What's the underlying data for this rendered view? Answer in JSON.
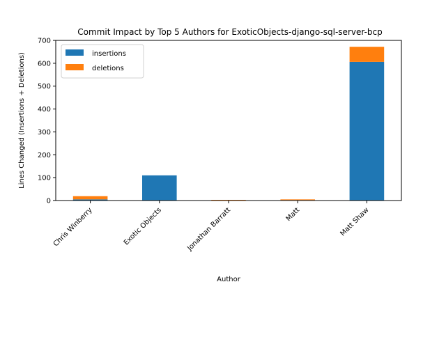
{
  "chart_data": {
    "type": "bar",
    "stacked": true,
    "title": "Commit Impact by Top 5 Authors for ExoticObjects-django-sql-server-bcp",
    "xlabel": "Author",
    "ylabel": "Lines Changed (Insertions + Deletions)",
    "categories": [
      "Chris Winberry",
      "Exotic Objects",
      "Jonathan Barratt",
      "Matt",
      "Matt Shaw"
    ],
    "series": [
      {
        "name": "insertions",
        "color": "#1f77b4",
        "values": [
          5,
          110,
          1,
          2,
          606
        ]
      },
      {
        "name": "deletions",
        "color": "#ff7f0e",
        "values": [
          14,
          0,
          2,
          3,
          66
        ]
      }
    ],
    "ylim": [
      0,
      700
    ],
    "yticks": [
      0,
      100,
      200,
      300,
      400,
      500,
      600,
      700
    ],
    "grid": false,
    "legend_position": "upper-left"
  }
}
